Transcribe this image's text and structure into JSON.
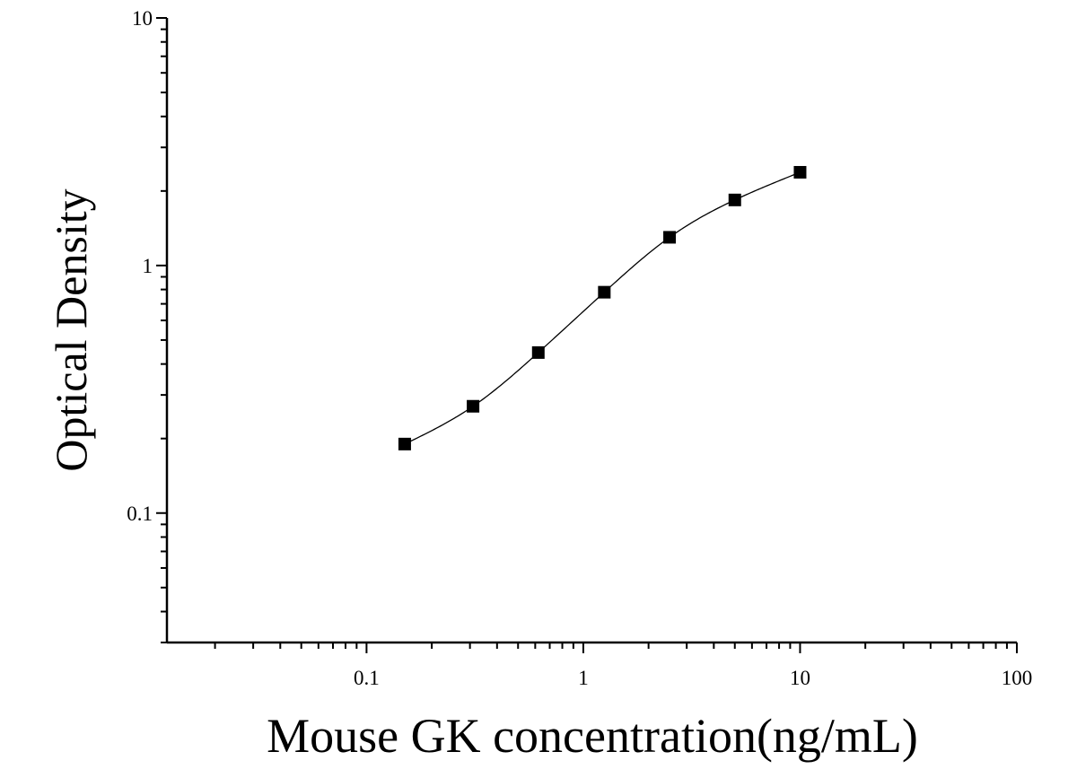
{
  "chart_data": {
    "type": "scatter",
    "title": "",
    "xlabel": "Mouse GK concentration(ng/mL)",
    "ylabel": "Optical Density",
    "x_scale": "log",
    "y_scale": "log",
    "xlim": [
      0.012,
      100
    ],
    "ylim": [
      0.03,
      10
    ],
    "x_ticks": [
      {
        "value": 0.1,
        "label": "0.1"
      },
      {
        "value": 1,
        "label": "1"
      },
      {
        "value": 10,
        "label": "10"
      },
      {
        "value": 100,
        "label": "100"
      }
    ],
    "y_ticks": [
      {
        "value": 0.1,
        "label": "0.1"
      },
      {
        "value": 1,
        "label": "1"
      },
      {
        "value": 10,
        "label": "10"
      }
    ],
    "grid": false,
    "legend": "none",
    "marker": "square",
    "colors": {
      "points": "#000000",
      "curve": "#000000",
      "axes": "#000000"
    },
    "series": [
      {
        "x": [
          0.15,
          0.31,
          0.62,
          1.25,
          2.5,
          5,
          10
        ],
        "y": [
          0.19,
          0.27,
          0.445,
          0.78,
          1.3,
          1.84,
          2.38
        ]
      }
    ],
    "fit_curve": {
      "type": "4PL",
      "x_range": [
        0.15,
        10
      ]
    }
  }
}
